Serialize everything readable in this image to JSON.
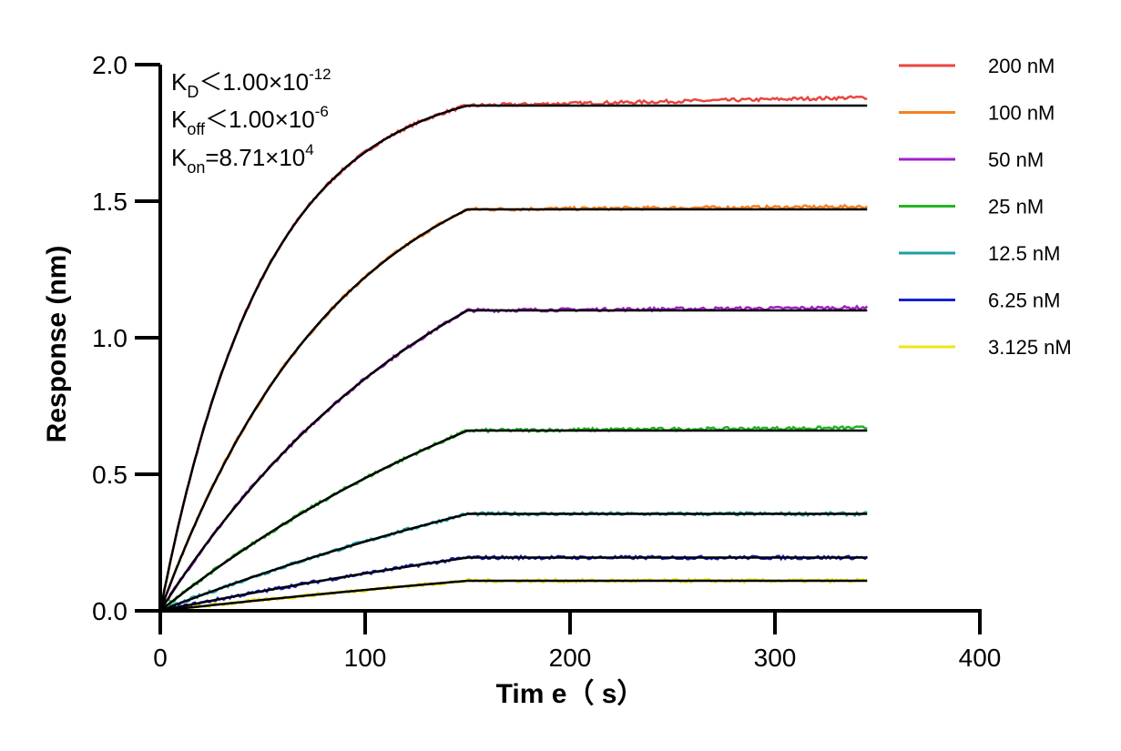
{
  "chart_data": {
    "type": "line",
    "title": "",
    "xlabel": "Tim e（ s）",
    "ylabel": "Response (nm)",
    "xlim": [
      0,
      400
    ],
    "ylim": [
      0,
      2.0
    ],
    "x_ticks": [
      "0",
      "100",
      "200",
      "300",
      "400"
    ],
    "y_ticks": [
      "0.0",
      "0.5",
      "1.0",
      "1.5",
      "2.0"
    ],
    "grid": false,
    "legend_position": "right",
    "association_end_s": 150,
    "dissociation_end_s": 345,
    "kinetics": {
      "kd": {
        "base": "K",
        "sub": "D",
        "rel": "＜1.00×10",
        "exp": "-12"
      },
      "koff": {
        "base": "K",
        "sub": "off",
        "rel": "＜1.00×10",
        "exp": "-6"
      },
      "kon": {
        "base": "K",
        "sub": "on",
        "rel": "=8.71×10",
        "exp": "4"
      }
    },
    "fit_color": "#000000",
    "series": [
      {
        "name": "200 nM",
        "color": "#e8463f",
        "plateau": 1.85,
        "measured_end": 1.88
      },
      {
        "name": "100 nM",
        "color": "#f6811f",
        "plateau": 1.47,
        "measured_end": 1.48
      },
      {
        "name": "50 nM",
        "color": "#a020c8",
        "plateau": 1.1,
        "measured_end": 1.11
      },
      {
        "name": "25 nM",
        "color": "#22b522",
        "plateau": 0.66,
        "measured_end": 0.67
      },
      {
        "name": "12.5 nM",
        "color": "#1ba0a8",
        "plateau": 0.355,
        "measured_end": 0.355
      },
      {
        "name": "6.25 nM",
        "color": "#1420d2",
        "plateau": 0.195,
        "measured_end": 0.195
      },
      {
        "name": "3.125 nM",
        "color": "#f0e614",
        "plateau": 0.11,
        "measured_end": 0.11
      }
    ]
  }
}
